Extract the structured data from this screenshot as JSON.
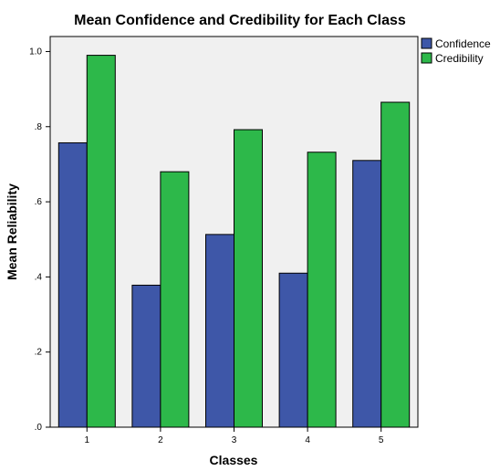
{
  "chart_data": {
    "type": "bar",
    "title": "Mean Confidence and Credibility for Each Class",
    "xlabel": "Classes",
    "ylabel": "Mean Reliability",
    "categories": [
      "1",
      "2",
      "3",
      "4",
      "5"
    ],
    "series": [
      {
        "name": "Confidence",
        "color": "#3e57a8",
        "values": [
          0.757,
          0.378,
          0.513,
          0.41,
          0.71
        ]
      },
      {
        "name": "Credibility",
        "color": "#2db84a",
        "values": [
          0.99,
          0.68,
          0.792,
          0.732,
          0.865
        ]
      }
    ],
    "ylim": [
      0,
      1.04
    ],
    "yticks": [
      {
        "value": 0.0,
        "label": ".0"
      },
      {
        "value": 0.2,
        "label": ".2"
      },
      {
        "value": 0.4,
        "label": ".4"
      },
      {
        "value": 0.6,
        "label": ".6"
      },
      {
        "value": 0.8,
        "label": ".8"
      },
      {
        "value": 1.0,
        "label": "1.0"
      }
    ],
    "grid": false,
    "legend": "top-right",
    "plot_background": "#f0f0f0"
  }
}
